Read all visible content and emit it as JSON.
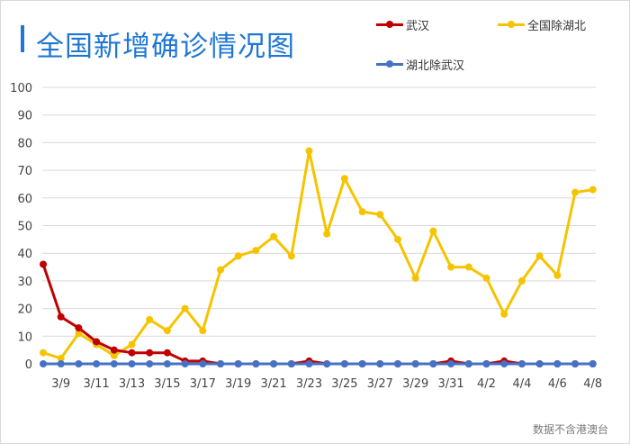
{
  "chart_data": {
    "type": "line",
    "title": "全国新增确诊情况图",
    "xlabel": "",
    "ylabel": "",
    "ylim": [
      0,
      100
    ],
    "yticks": [
      0,
      10,
      20,
      30,
      40,
      50,
      60,
      70,
      80,
      90,
      100
    ],
    "grid": true,
    "legend_position": "top-right",
    "categories": [
      "3/8",
      "3/9",
      "3/10",
      "3/11",
      "3/12",
      "3/13",
      "3/14",
      "3/15",
      "3/16",
      "3/17",
      "3/18",
      "3/19",
      "3/20",
      "3/21",
      "3/22",
      "3/23",
      "3/24",
      "3/25",
      "3/26",
      "3/27",
      "3/28",
      "3/29",
      "3/30",
      "3/31",
      "4/1",
      "4/2",
      "4/3",
      "4/4",
      "4/5",
      "4/6",
      "4/7",
      "4/8"
    ],
    "tick_labels": [
      "3/9",
      "3/11",
      "3/13",
      "3/15",
      "3/17",
      "3/19",
      "3/21",
      "3/23",
      "3/25",
      "3/27",
      "3/29",
      "3/31",
      "4/2",
      "4/4",
      "4/6",
      "4/8"
    ],
    "series": [
      {
        "name": "武汉",
        "color": "#c00000",
        "values": [
          36,
          17,
          13,
          8,
          5,
          4,
          4,
          4,
          1,
          1,
          0,
          0,
          0,
          0,
          0,
          1,
          0,
          0,
          0,
          0,
          0,
          0,
          0,
          1,
          0,
          0,
          1,
          0,
          0,
          0,
          0,
          0
        ]
      },
      {
        "name": "全国除湖北",
        "color": "#f5c400",
        "values": [
          4,
          2,
          11,
          7,
          3,
          7,
          16,
          12,
          20,
          12,
          34,
          39,
          41,
          46,
          39,
          77,
          47,
          67,
          55,
          54,
          45,
          31,
          48,
          35,
          35,
          31,
          18,
          30,
          39,
          32,
          62,
          63
        ]
      },
      {
        "name": "湖北除武汉",
        "color": "#4472c4",
        "values": [
          0,
          0,
          0,
          0,
          0,
          0,
          0,
          0,
          0,
          0,
          0,
          0,
          0,
          0,
          0,
          0,
          0,
          0,
          0,
          0,
          0,
          0,
          0,
          0,
          0,
          0,
          0,
          0,
          0,
          0,
          0,
          0
        ]
      }
    ]
  },
  "watermark": "数据不含港澳台"
}
